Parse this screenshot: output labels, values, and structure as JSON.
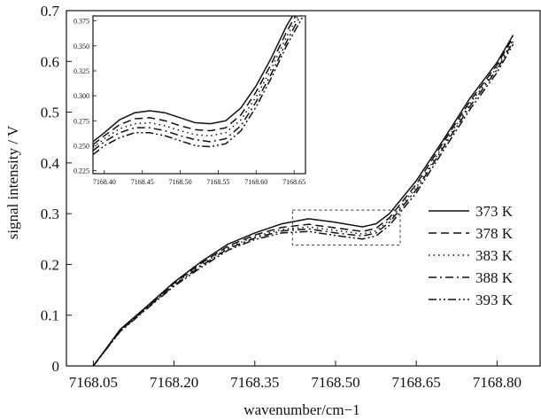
{
  "chart_data": {
    "type": "line",
    "xlabel": "wavenumber/cm−1",
    "ylabel": "signal intensity / V",
    "xlim": [
      7168.0,
      7168.88
    ],
    "ylim": [
      0,
      0.7
    ],
    "xticks": [
      "7168.05",
      "7168.20",
      "7168.35",
      "7168.50",
      "7168.65",
      "7168.80"
    ],
    "yticks": [
      "0",
      "0.1",
      "0.2",
      "0.3",
      "0.4",
      "0.5",
      "0.6",
      "0.7"
    ],
    "grid": false,
    "legend_position": "right",
    "series": [
      {
        "name": "373 K",
        "dash": "solid",
        "points": [
          [
            7168.05,
            0.0
          ],
          [
            7168.1,
            0.072
          ],
          [
            7168.15,
            0.118
          ],
          [
            7168.2,
            0.165
          ],
          [
            7168.25,
            0.205
          ],
          [
            7168.3,
            0.24
          ],
          [
            7168.35,
            0.262
          ],
          [
            7168.4,
            0.28
          ],
          [
            7168.45,
            0.29
          ],
          [
            7168.5,
            0.283
          ],
          [
            7168.55,
            0.274
          ],
          [
            7168.575,
            0.28
          ],
          [
            7168.6,
            0.3
          ],
          [
            7168.65,
            0.365
          ],
          [
            7168.7,
            0.445
          ],
          [
            7168.75,
            0.528
          ],
          [
            7168.8,
            0.598
          ],
          [
            7168.83,
            0.652
          ]
        ]
      },
      {
        "name": "378 K",
        "dash": "dash",
        "points": [
          [
            7168.05,
            0.0
          ],
          [
            7168.1,
            0.071
          ],
          [
            7168.15,
            0.117
          ],
          [
            7168.2,
            0.163
          ],
          [
            7168.25,
            0.202
          ],
          [
            7168.3,
            0.236
          ],
          [
            7168.35,
            0.258
          ],
          [
            7168.4,
            0.273
          ],
          [
            7168.45,
            0.279
          ],
          [
            7168.5,
            0.272
          ],
          [
            7168.55,
            0.265
          ],
          [
            7168.575,
            0.271
          ],
          [
            7168.6,
            0.292
          ],
          [
            7168.65,
            0.358
          ],
          [
            7168.7,
            0.44
          ],
          [
            7168.75,
            0.522
          ],
          [
            7168.8,
            0.593
          ],
          [
            7168.83,
            0.648
          ]
        ]
      },
      {
        "name": "383 K",
        "dash": "dot",
        "points": [
          [
            7168.05,
            0.0
          ],
          [
            7168.1,
            0.07
          ],
          [
            7168.15,
            0.116
          ],
          [
            7168.2,
            0.161
          ],
          [
            7168.25,
            0.199
          ],
          [
            7168.3,
            0.233
          ],
          [
            7168.35,
            0.255
          ],
          [
            7168.4,
            0.269
          ],
          [
            7168.45,
            0.274
          ],
          [
            7168.5,
            0.267
          ],
          [
            7168.55,
            0.26
          ],
          [
            7168.575,
            0.266
          ],
          [
            7168.6,
            0.287
          ],
          [
            7168.65,
            0.352
          ],
          [
            7168.7,
            0.434
          ],
          [
            7168.75,
            0.517
          ],
          [
            7168.8,
            0.588
          ],
          [
            7168.83,
            0.643
          ]
        ]
      },
      {
        "name": "388 K",
        "dash": "dashdot",
        "points": [
          [
            7168.05,
            0.0
          ],
          [
            7168.1,
            0.069
          ],
          [
            7168.15,
            0.115
          ],
          [
            7168.2,
            0.159
          ],
          [
            7168.25,
            0.197
          ],
          [
            7168.3,
            0.231
          ],
          [
            7168.35,
            0.252
          ],
          [
            7168.4,
            0.266
          ],
          [
            7168.45,
            0.27
          ],
          [
            7168.5,
            0.262
          ],
          [
            7168.55,
            0.256
          ],
          [
            7168.575,
            0.262
          ],
          [
            7168.6,
            0.283
          ],
          [
            7168.65,
            0.347
          ],
          [
            7168.7,
            0.43
          ],
          [
            7168.75,
            0.512
          ],
          [
            7168.8,
            0.584
          ],
          [
            7168.83,
            0.639
          ]
        ]
      },
      {
        "name": "393 K",
        "dash": "dashdotdot",
        "points": [
          [
            7168.05,
            0.0
          ],
          [
            7168.1,
            0.068
          ],
          [
            7168.15,
            0.113
          ],
          [
            7168.2,
            0.157
          ],
          [
            7168.25,
            0.194
          ],
          [
            7168.3,
            0.228
          ],
          [
            7168.35,
            0.249
          ],
          [
            7168.4,
            0.262
          ],
          [
            7168.45,
            0.265
          ],
          [
            7168.5,
            0.257
          ],
          [
            7168.55,
            0.25
          ],
          [
            7168.575,
            0.256
          ],
          [
            7168.6,
            0.277
          ],
          [
            7168.65,
            0.341
          ],
          [
            7168.7,
            0.424
          ],
          [
            7168.75,
            0.506
          ],
          [
            7168.8,
            0.578
          ],
          [
            7168.83,
            0.634
          ]
        ]
      }
    ],
    "highlight_box": {
      "x": [
        7168.42,
        7168.62
      ],
      "y": [
        0.238,
        0.307
      ]
    },
    "inset": {
      "xlim": [
        7168.385,
        7168.665
      ],
      "ylim": [
        0.222,
        0.38
      ],
      "xticks": [
        "7168.40",
        "7168.45",
        "7168.50",
        "7168.55",
        "7168.60",
        "7168.65"
      ],
      "yticks": [
        "0.225",
        "0.250",
        "0.275",
        "0.300",
        "0.325",
        "0.350",
        "0.375"
      ],
      "series": [
        {
          "name": "373 K",
          "dash": "solid",
          "points": [
            [
              7168.385,
              0.254
            ],
            [
              7168.4,
              0.263
            ],
            [
              7168.42,
              0.276
            ],
            [
              7168.44,
              0.283
            ],
            [
              7168.46,
              0.285
            ],
            [
              7168.48,
              0.283
            ],
            [
              7168.5,
              0.278
            ],
            [
              7168.52,
              0.273
            ],
            [
              7168.54,
              0.272
            ],
            [
              7168.56,
              0.275
            ],
            [
              7168.58,
              0.288
            ],
            [
              7168.6,
              0.31
            ],
            [
              7168.62,
              0.338
            ],
            [
              7168.64,
              0.37
            ],
            [
              7168.648,
              0.38
            ]
          ]
        },
        {
          "name": "378 K",
          "dash": "dash",
          "points": [
            [
              7168.385,
              0.251
            ],
            [
              7168.4,
              0.26
            ],
            [
              7168.42,
              0.271
            ],
            [
              7168.44,
              0.277
            ],
            [
              7168.46,
              0.278
            ],
            [
              7168.48,
              0.275
            ],
            [
              7168.5,
              0.27
            ],
            [
              7168.52,
              0.266
            ],
            [
              7168.54,
              0.265
            ],
            [
              7168.56,
              0.268
            ],
            [
              7168.58,
              0.281
            ],
            [
              7168.6,
              0.304
            ],
            [
              7168.62,
              0.332
            ],
            [
              7168.64,
              0.364
            ],
            [
              7168.652,
              0.38
            ]
          ]
        },
        {
          "name": "383 K",
          "dash": "dot",
          "points": [
            [
              7168.385,
              0.248
            ],
            [
              7168.4,
              0.257
            ],
            [
              7168.42,
              0.267
            ],
            [
              7168.44,
              0.272
            ],
            [
              7168.46,
              0.273
            ],
            [
              7168.48,
              0.27
            ],
            [
              7168.5,
              0.265
            ],
            [
              7168.52,
              0.261
            ],
            [
              7168.54,
              0.26
            ],
            [
              7168.56,
              0.263
            ],
            [
              7168.58,
              0.276
            ],
            [
              7168.6,
              0.299
            ],
            [
              7168.62,
              0.327
            ],
            [
              7168.64,
              0.359
            ],
            [
              7168.655,
              0.38
            ]
          ]
        },
        {
          "name": "388 K",
          "dash": "dashdot",
          "points": [
            [
              7168.385,
              0.245
            ],
            [
              7168.4,
              0.254
            ],
            [
              7168.42,
              0.263
            ],
            [
              7168.44,
              0.268
            ],
            [
              7168.46,
              0.268
            ],
            [
              7168.48,
              0.265
            ],
            [
              7168.5,
              0.26
            ],
            [
              7168.52,
              0.256
            ],
            [
              7168.54,
              0.254
            ],
            [
              7168.56,
              0.257
            ],
            [
              7168.58,
              0.27
            ],
            [
              7168.6,
              0.294
            ],
            [
              7168.62,
              0.322
            ],
            [
              7168.64,
              0.354
            ],
            [
              7168.658,
              0.38
            ]
          ]
        },
        {
          "name": "393 K",
          "dash": "dashdotdot",
          "points": [
            [
              7168.385,
              0.241
            ],
            [
              7168.4,
              0.25
            ],
            [
              7168.42,
              0.258
            ],
            [
              7168.44,
              0.263
            ],
            [
              7168.46,
              0.263
            ],
            [
              7168.48,
              0.26
            ],
            [
              7168.5,
              0.255
            ],
            [
              7168.52,
              0.25
            ],
            [
              7168.54,
              0.249
            ],
            [
              7168.56,
              0.252
            ],
            [
              7168.58,
              0.265
            ],
            [
              7168.6,
              0.289
            ],
            [
              7168.62,
              0.318
            ],
            [
              7168.64,
              0.35
            ],
            [
              7168.662,
              0.38
            ]
          ]
        }
      ]
    }
  }
}
